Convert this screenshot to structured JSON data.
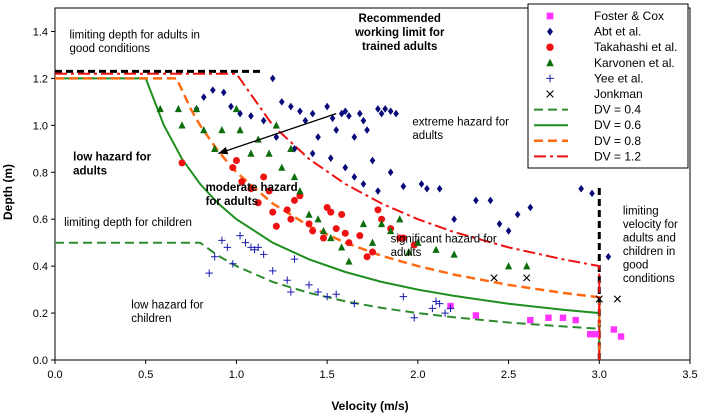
{
  "chart_data": {
    "type": "scatter",
    "title": "",
    "xlabel": "Velocity (m/s)",
    "ylabel": "Depth (m)",
    "xlim": [
      0,
      3.5
    ],
    "ylim": [
      0,
      1.5
    ],
    "xticks": [
      "0.0",
      "0.5",
      "1.0",
      "1.5",
      "2.0",
      "2.5",
      "3.0",
      "3.5"
    ],
    "yticks": [
      "0.0",
      "0.2",
      "0.4",
      "0.6",
      "0.8",
      "1.0",
      "1.2",
      "1.4"
    ],
    "grid": false,
    "legend_position": "top-right",
    "series": [
      {
        "name": "Foster & Cox",
        "marker": "square",
        "color": "#ff33ff",
        "points": [
          [
            2.18,
            0.23
          ],
          [
            2.32,
            0.19
          ],
          [
            2.62,
            0.17
          ],
          [
            2.72,
            0.18
          ],
          [
            2.8,
            0.18
          ],
          [
            2.87,
            0.17
          ],
          [
            2.95,
            0.11
          ],
          [
            2.98,
            0.11
          ],
          [
            3.08,
            0.13
          ],
          [
            3.12,
            0.1
          ]
        ]
      },
      {
        "name": "Abt et al.",
        "marker": "diamond",
        "color": "#0a0a7a",
        "points": [
          [
            0.78,
            1.07
          ],
          [
            0.82,
            1.12
          ],
          [
            0.87,
            1.15
          ],
          [
            0.93,
            1.14
          ],
          [
            0.97,
            1.08
          ],
          [
            1.02,
            1.05
          ],
          [
            1.08,
            1.04
          ],
          [
            1.15,
            1.02
          ],
          [
            1.2,
            1.2
          ],
          [
            1.25,
            1.1
          ],
          [
            1.3,
            1.08
          ],
          [
            1.35,
            1.06
          ],
          [
            1.38,
            1.02
          ],
          [
            1.42,
            1.05
          ],
          [
            1.45,
            0.95
          ],
          [
            1.5,
            1.08
          ],
          [
            1.53,
            1.03
          ],
          [
            1.55,
            0.98
          ],
          [
            1.58,
            1.05
          ],
          [
            1.6,
            1.06
          ],
          [
            1.62,
            1.04
          ],
          [
            1.65,
            0.95
          ],
          [
            1.68,
            1.05
          ],
          [
            1.7,
            1.02
          ],
          [
            1.72,
            0.98
          ],
          [
            1.75,
            0.85
          ],
          [
            1.78,
            1.07
          ],
          [
            1.8,
            1.05
          ],
          [
            1.82,
            1.07
          ],
          [
            1.85,
            1.06
          ],
          [
            1.88,
            1.05
          ],
          [
            1.22,
            0.95
          ],
          [
            1.32,
            0.9
          ],
          [
            1.42,
            0.88
          ],
          [
            1.52,
            0.86
          ],
          [
            1.6,
            0.82
          ],
          [
            1.65,
            0.78
          ],
          [
            1.7,
            0.75
          ],
          [
            1.78,
            0.72
          ],
          [
            1.85,
            0.8
          ],
          [
            1.92,
            0.74
          ],
          [
            2.02,
            0.75
          ],
          [
            2.05,
            0.73
          ],
          [
            2.12,
            0.73
          ],
          [
            2.2,
            0.6
          ],
          [
            2.32,
            0.68
          ],
          [
            2.4,
            0.68
          ],
          [
            2.45,
            0.58
          ],
          [
            2.5,
            0.55
          ],
          [
            2.55,
            0.62
          ],
          [
            2.62,
            0.65
          ],
          [
            2.9,
            0.73
          ],
          [
            2.96,
            0.71
          ],
          [
            3.05,
            0.44
          ]
        ]
      },
      {
        "name": "Takahashi et al.",
        "marker": "circle",
        "color": "#ee1111",
        "points": [
          [
            0.7,
            0.84
          ],
          [
            0.98,
            0.82
          ],
          [
            1.0,
            0.85
          ],
          [
            1.03,
            0.76
          ],
          [
            1.08,
            0.73
          ],
          [
            1.12,
            0.67
          ],
          [
            1.15,
            0.78
          ],
          [
            1.18,
            0.72
          ],
          [
            1.2,
            0.63
          ],
          [
            1.22,
            0.57
          ],
          [
            1.28,
            0.64
          ],
          [
            1.3,
            0.6
          ],
          [
            1.32,
            0.68
          ],
          [
            1.35,
            0.7
          ],
          [
            1.4,
            0.58
          ],
          [
            1.42,
            0.55
          ],
          [
            1.48,
            0.52
          ],
          [
            1.5,
            0.65
          ],
          [
            1.52,
            0.63
          ],
          [
            1.55,
            0.56
          ],
          [
            1.58,
            0.62
          ],
          [
            1.6,
            0.54
          ],
          [
            1.62,
            0.5
          ],
          [
            1.68,
            0.53
          ],
          [
            1.72,
            0.44
          ],
          [
            1.75,
            0.46
          ],
          [
            1.78,
            0.64
          ],
          [
            1.8,
            0.6
          ],
          [
            1.85,
            0.56
          ],
          [
            1.9,
            0.52
          ],
          [
            1.92,
            0.52
          ],
          [
            1.98,
            0.49
          ]
        ]
      },
      {
        "name": "Karvonen et al.",
        "marker": "triangle",
        "color": "#0b6e0b",
        "points": [
          [
            0.58,
            1.07
          ],
          [
            0.68,
            1.07
          ],
          [
            0.7,
            1.0
          ],
          [
            0.78,
            1.07
          ],
          [
            0.82,
            0.98
          ],
          [
            0.88,
            0.9
          ],
          [
            0.92,
            0.98
          ],
          [
            1.0,
            1.07
          ],
          [
            1.02,
            0.98
          ],
          [
            1.08,
            0.88
          ],
          [
            1.12,
            0.94
          ],
          [
            1.18,
            0.88
          ],
          [
            1.22,
            1.0
          ],
          [
            1.25,
            0.82
          ],
          [
            1.3,
            0.9
          ],
          [
            1.32,
            0.78
          ],
          [
            1.35,
            0.72
          ],
          [
            1.4,
            0.62
          ],
          [
            1.45,
            0.6
          ],
          [
            1.48,
            0.55
          ],
          [
            1.52,
            0.52
          ],
          [
            1.58,
            0.48
          ],
          [
            1.62,
            0.42
          ],
          [
            1.7,
            0.58
          ],
          [
            1.75,
            0.5
          ],
          [
            1.8,
            0.58
          ],
          [
            1.85,
            0.55
          ],
          [
            1.9,
            0.6
          ],
          [
            1.95,
            0.46
          ],
          [
            2.0,
            0.5
          ],
          [
            2.1,
            0.47
          ],
          [
            2.2,
            0.45
          ],
          [
            2.5,
            0.4
          ],
          [
            2.6,
            0.4
          ]
        ]
      },
      {
        "name": "Yee et al.",
        "marker": "plus",
        "color": "#1a1ab0",
        "points": [
          [
            0.85,
            0.37
          ],
          [
            0.88,
            0.44
          ],
          [
            0.92,
            0.51
          ],
          [
            0.95,
            0.48
          ],
          [
            0.98,
            0.41
          ],
          [
            1.02,
            0.53
          ],
          [
            1.05,
            0.5
          ],
          [
            1.08,
            0.48
          ],
          [
            1.1,
            0.47
          ],
          [
            1.12,
            0.48
          ],
          [
            1.15,
            0.45
          ],
          [
            1.2,
            0.38
          ],
          [
            1.28,
            0.34
          ],
          [
            1.3,
            0.29
          ],
          [
            1.32,
            0.43
          ],
          [
            1.4,
            0.32
          ],
          [
            1.45,
            0.29
          ],
          [
            1.5,
            0.27
          ],
          [
            1.55,
            0.28
          ],
          [
            1.65,
            0.24
          ],
          [
            1.92,
            0.27
          ],
          [
            1.98,
            0.18
          ],
          [
            2.08,
            0.22
          ],
          [
            2.1,
            0.25
          ],
          [
            2.12,
            0.24
          ],
          [
            2.15,
            0.2
          ],
          [
            2.18,
            0.22
          ]
        ]
      },
      {
        "name": "Jonkman",
        "marker": "cross",
        "color": "#000000",
        "points": [
          [
            2.42,
            0.35
          ],
          [
            2.6,
            0.35
          ],
          [
            3.0,
            0.26
          ],
          [
            3.1,
            0.26
          ]
        ]
      },
      {
        "name": "DV = 0.4",
        "line_style": "dashed",
        "color": "#2e8b2e",
        "points": [
          [
            0.0,
            0.5
          ],
          [
            0.8,
            0.5
          ],
          [
            0.9,
            0.444
          ],
          [
            1.0,
            0.4
          ],
          [
            1.2,
            0.333
          ],
          [
            1.4,
            0.286
          ],
          [
            1.6,
            0.25
          ],
          [
            1.8,
            0.222
          ],
          [
            2.0,
            0.2
          ],
          [
            2.2,
            0.182
          ],
          [
            2.5,
            0.16
          ],
          [
            2.8,
            0.143
          ],
          [
            3.0,
            0.133
          ],
          [
            3.0,
            0.0
          ]
        ]
      },
      {
        "name": "DV = 0.6",
        "line_style": "solid",
        "color": "#1f8f1f",
        "points": [
          [
            0.0,
            1.2
          ],
          [
            0.5,
            1.2
          ],
          [
            0.6,
            1.0
          ],
          [
            0.7,
            0.857
          ],
          [
            0.8,
            0.75
          ],
          [
            0.9,
            0.667
          ],
          [
            1.0,
            0.6
          ],
          [
            1.2,
            0.5
          ],
          [
            1.4,
            0.429
          ],
          [
            1.6,
            0.375
          ],
          [
            1.8,
            0.333
          ],
          [
            2.0,
            0.3
          ],
          [
            2.2,
            0.273
          ],
          [
            2.5,
            0.24
          ],
          [
            2.8,
            0.214
          ],
          [
            3.0,
            0.2
          ],
          [
            3.0,
            0.0
          ]
        ]
      },
      {
        "name": "DV = 0.8",
        "line_style": "dashed",
        "color": "#ff6a13",
        "points": [
          [
            0.0,
            1.2
          ],
          [
            0.67,
            1.2
          ],
          [
            0.75,
            1.067
          ],
          [
            0.8,
            1.0
          ],
          [
            0.9,
            0.889
          ],
          [
            1.0,
            0.8
          ],
          [
            1.2,
            0.667
          ],
          [
            1.4,
            0.571
          ],
          [
            1.6,
            0.5
          ],
          [
            1.8,
            0.444
          ],
          [
            2.0,
            0.4
          ],
          [
            2.2,
            0.364
          ],
          [
            2.5,
            0.32
          ],
          [
            2.8,
            0.286
          ],
          [
            3.0,
            0.267
          ],
          [
            3.0,
            0.0
          ]
        ]
      },
      {
        "name": "DV = 1.2",
        "line_style": "dashdot",
        "color": "#ee1111",
        "points": [
          [
            0.0,
            1.22
          ],
          [
            1.0,
            1.22
          ],
          [
            1.2,
            1.0
          ],
          [
            1.4,
            0.857
          ],
          [
            1.6,
            0.75
          ],
          [
            1.8,
            0.667
          ],
          [
            2.0,
            0.6
          ],
          [
            2.2,
            0.545
          ],
          [
            2.5,
            0.48
          ],
          [
            2.8,
            0.429
          ],
          [
            3.0,
            0.4
          ],
          [
            3.0,
            0.0
          ]
        ]
      }
    ],
    "reference_lines": [
      {
        "label": "limiting depth for adults",
        "style": "dashed",
        "color": "#000000",
        "points": [
          [
            0.0,
            1.23
          ],
          [
            1.15,
            1.23
          ]
        ]
      },
      {
        "label": "limiting velocity",
        "style": "dashed",
        "color": "#000000",
        "points": [
          [
            3.0,
            0.0
          ],
          [
            3.0,
            0.75
          ]
        ]
      }
    ],
    "annotations": [
      {
        "id": "adults-depth",
        "lines": [
          "limiting depth for adults in",
          "good conditions"
        ],
        "at": [
          0.08,
          1.37
        ],
        "anchor": "start",
        "weight": "normal"
      },
      {
        "id": "recommended",
        "lines": [
          "Recommended",
          "working limit for",
          "trained adults"
        ],
        "at": [
          1.9,
          1.44
        ],
        "anchor": "middle",
        "weight": "bold"
      },
      {
        "id": "low-adults",
        "lines": [
          "low hazard for",
          "adults"
        ],
        "at": [
          0.1,
          0.85
        ],
        "anchor": "start",
        "weight": "bold"
      },
      {
        "id": "moderate",
        "lines": [
          "moderate hazard",
          "for adults"
        ],
        "at": [
          0.83,
          0.72
        ],
        "anchor": "start",
        "weight": "bold"
      },
      {
        "id": "extreme",
        "lines": [
          "extreme hazard for",
          "adults"
        ],
        "at": [
          1.97,
          1.0
        ],
        "anchor": "start",
        "weight": "normal"
      },
      {
        "id": "children-depth",
        "lines": [
          "limiting depth for children"
        ],
        "at": [
          0.05,
          0.57
        ],
        "anchor": "start",
        "weight": "normal"
      },
      {
        "id": "significant",
        "lines": [
          "significant hazard for",
          "adults"
        ],
        "at": [
          1.85,
          0.5
        ],
        "anchor": "start",
        "weight": "normal"
      },
      {
        "id": "low-children",
        "lines": [
          "low hazard for",
          "children"
        ],
        "at": [
          0.42,
          0.22
        ],
        "anchor": "start",
        "weight": "normal"
      },
      {
        "id": "limiting-velocity",
        "lines": [
          "limiting",
          "velocity for",
          "adults and",
          "children in",
          "good",
          "conditions"
        ],
        "at": [
          3.13,
          0.62
        ],
        "anchor": "start",
        "weight": "normal"
      }
    ],
    "arrow": {
      "from": [
        1.55,
        1.05
      ],
      "to": [
        0.9,
        0.88
      ]
    }
  }
}
